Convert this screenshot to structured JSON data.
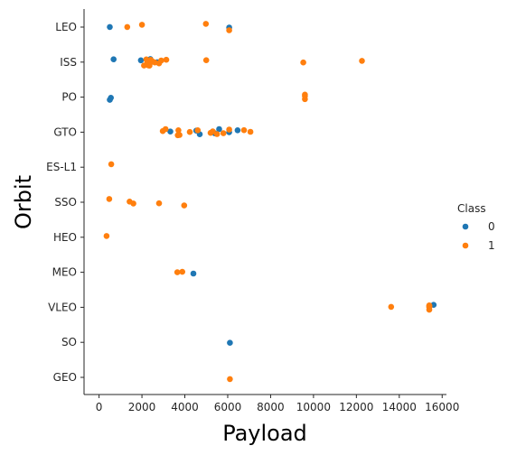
{
  "chart_data": {
    "type": "scatter",
    "xlabel": "Payload",
    "ylabel": "Orbit",
    "xlim": [
      -700,
      16200
    ],
    "x_ticks": [
      0,
      2000,
      4000,
      6000,
      8000,
      10000,
      12000,
      14000,
      16000
    ],
    "x_tick_labels": [
      "0",
      "2000",
      "4000",
      "6000",
      "8000",
      "10000",
      "12000",
      "14000",
      "16000"
    ],
    "categories": [
      "LEO",
      "ISS",
      "PO",
      "GTO",
      "ES-L1",
      "SSO",
      "HEO",
      "MEO",
      "VLEO",
      "SO",
      "GEO"
    ],
    "grid": false,
    "legend": {
      "title": "Class",
      "placement": "right",
      "entries": [
        {
          "label": "0",
          "color": "#1f77b4"
        },
        {
          "label": "1",
          "color": "#ff7f0e"
        }
      ]
    },
    "series": [
      {
        "name": "0",
        "color": "#1f77b4",
        "points": [
          {
            "x": 500,
            "y": "LEO"
          },
          {
            "x": 6070,
            "y": "LEO"
          },
          {
            "x": 677,
            "y": "ISS"
          },
          {
            "x": 1952,
            "y": "ISS"
          },
          {
            "x": 2490,
            "y": "ISS"
          },
          {
            "x": 2708,
            "y": "ISS"
          },
          {
            "x": 2395,
            "y": "ISS"
          },
          {
            "x": 500,
            "y": "PO"
          },
          {
            "x": 553,
            "y": "PO"
          },
          {
            "x": 3325,
            "y": "GTO"
          },
          {
            "x": 4535,
            "y": "GTO"
          },
          {
            "x": 4696,
            "y": "GTO"
          },
          {
            "x": 5400,
            "y": "GTO"
          },
          {
            "x": 5600,
            "y": "GTO"
          },
          {
            "x": 6070,
            "y": "GTO"
          },
          {
            "x": 6460,
            "y": "GTO"
          },
          {
            "x": 4400,
            "y": "MEO"
          },
          {
            "x": 15600,
            "y": "VLEO"
          },
          {
            "x": 6104,
            "y": "SO"
          }
        ]
      },
      {
        "name": "1",
        "color": "#ff7f0e",
        "points": [
          {
            "x": 1316,
            "y": "LEO"
          },
          {
            "x": 2000,
            "y": "LEO"
          },
          {
            "x": 4980,
            "y": "LEO"
          },
          {
            "x": 6070,
            "y": "LEO"
          },
          {
            "x": 2100,
            "y": "ISS"
          },
          {
            "x": 2205,
            "y": "ISS"
          },
          {
            "x": 2257,
            "y": "ISS"
          },
          {
            "x": 2300,
            "y": "ISS"
          },
          {
            "x": 2410,
            "y": "ISS"
          },
          {
            "x": 2500,
            "y": "ISS"
          },
          {
            "x": 2600,
            "y": "ISS"
          },
          {
            "x": 2800,
            "y": "ISS"
          },
          {
            "x": 2900,
            "y": "ISS"
          },
          {
            "x": 3136,
            "y": "ISS"
          },
          {
            "x": 2350,
            "y": "ISS"
          },
          {
            "x": 2450,
            "y": "ISS"
          },
          {
            "x": 5000,
            "y": "ISS"
          },
          {
            "x": 9525,
            "y": "ISS"
          },
          {
            "x": 12259,
            "y": "ISS"
          },
          {
            "x": 9600,
            "y": "PO"
          },
          {
            "x": 9600,
            "y": "PO"
          },
          {
            "x": 9600,
            "y": "PO"
          },
          {
            "x": 2970,
            "y": "GTO"
          },
          {
            "x": 3100,
            "y": "GTO"
          },
          {
            "x": 3669,
            "y": "GTO"
          },
          {
            "x": 3700,
            "y": "GTO"
          },
          {
            "x": 3750,
            "y": "GTO"
          },
          {
            "x": 4230,
            "y": "GTO"
          },
          {
            "x": 4600,
            "y": "GTO"
          },
          {
            "x": 5200,
            "y": "GTO"
          },
          {
            "x": 5300,
            "y": "GTO"
          },
          {
            "x": 5500,
            "y": "GTO"
          },
          {
            "x": 5800,
            "y": "GTO"
          },
          {
            "x": 6070,
            "y": "GTO"
          },
          {
            "x": 6761,
            "y": "GTO"
          },
          {
            "x": 7060,
            "y": "GTO"
          },
          {
            "x": 570,
            "y": "ES-L1"
          },
          {
            "x": 475,
            "y": "SSO"
          },
          {
            "x": 1425,
            "y": "SSO"
          },
          {
            "x": 1600,
            "y": "SSO"
          },
          {
            "x": 2800,
            "y": "SSO"
          },
          {
            "x": 3970,
            "y": "SSO"
          },
          {
            "x": 350,
            "y": "HEO"
          },
          {
            "x": 3880,
            "y": "MEO"
          },
          {
            "x": 3650,
            "y": "MEO"
          },
          {
            "x": 13620,
            "y": "VLEO"
          },
          {
            "x": 15400,
            "y": "VLEO"
          },
          {
            "x": 15400,
            "y": "VLEO"
          },
          {
            "x": 15400,
            "y": "VLEO"
          },
          {
            "x": 15400,
            "y": "VLEO"
          },
          {
            "x": 15400,
            "y": "VLEO"
          },
          {
            "x": 6104,
            "y": "GEO"
          }
        ]
      }
    ]
  }
}
